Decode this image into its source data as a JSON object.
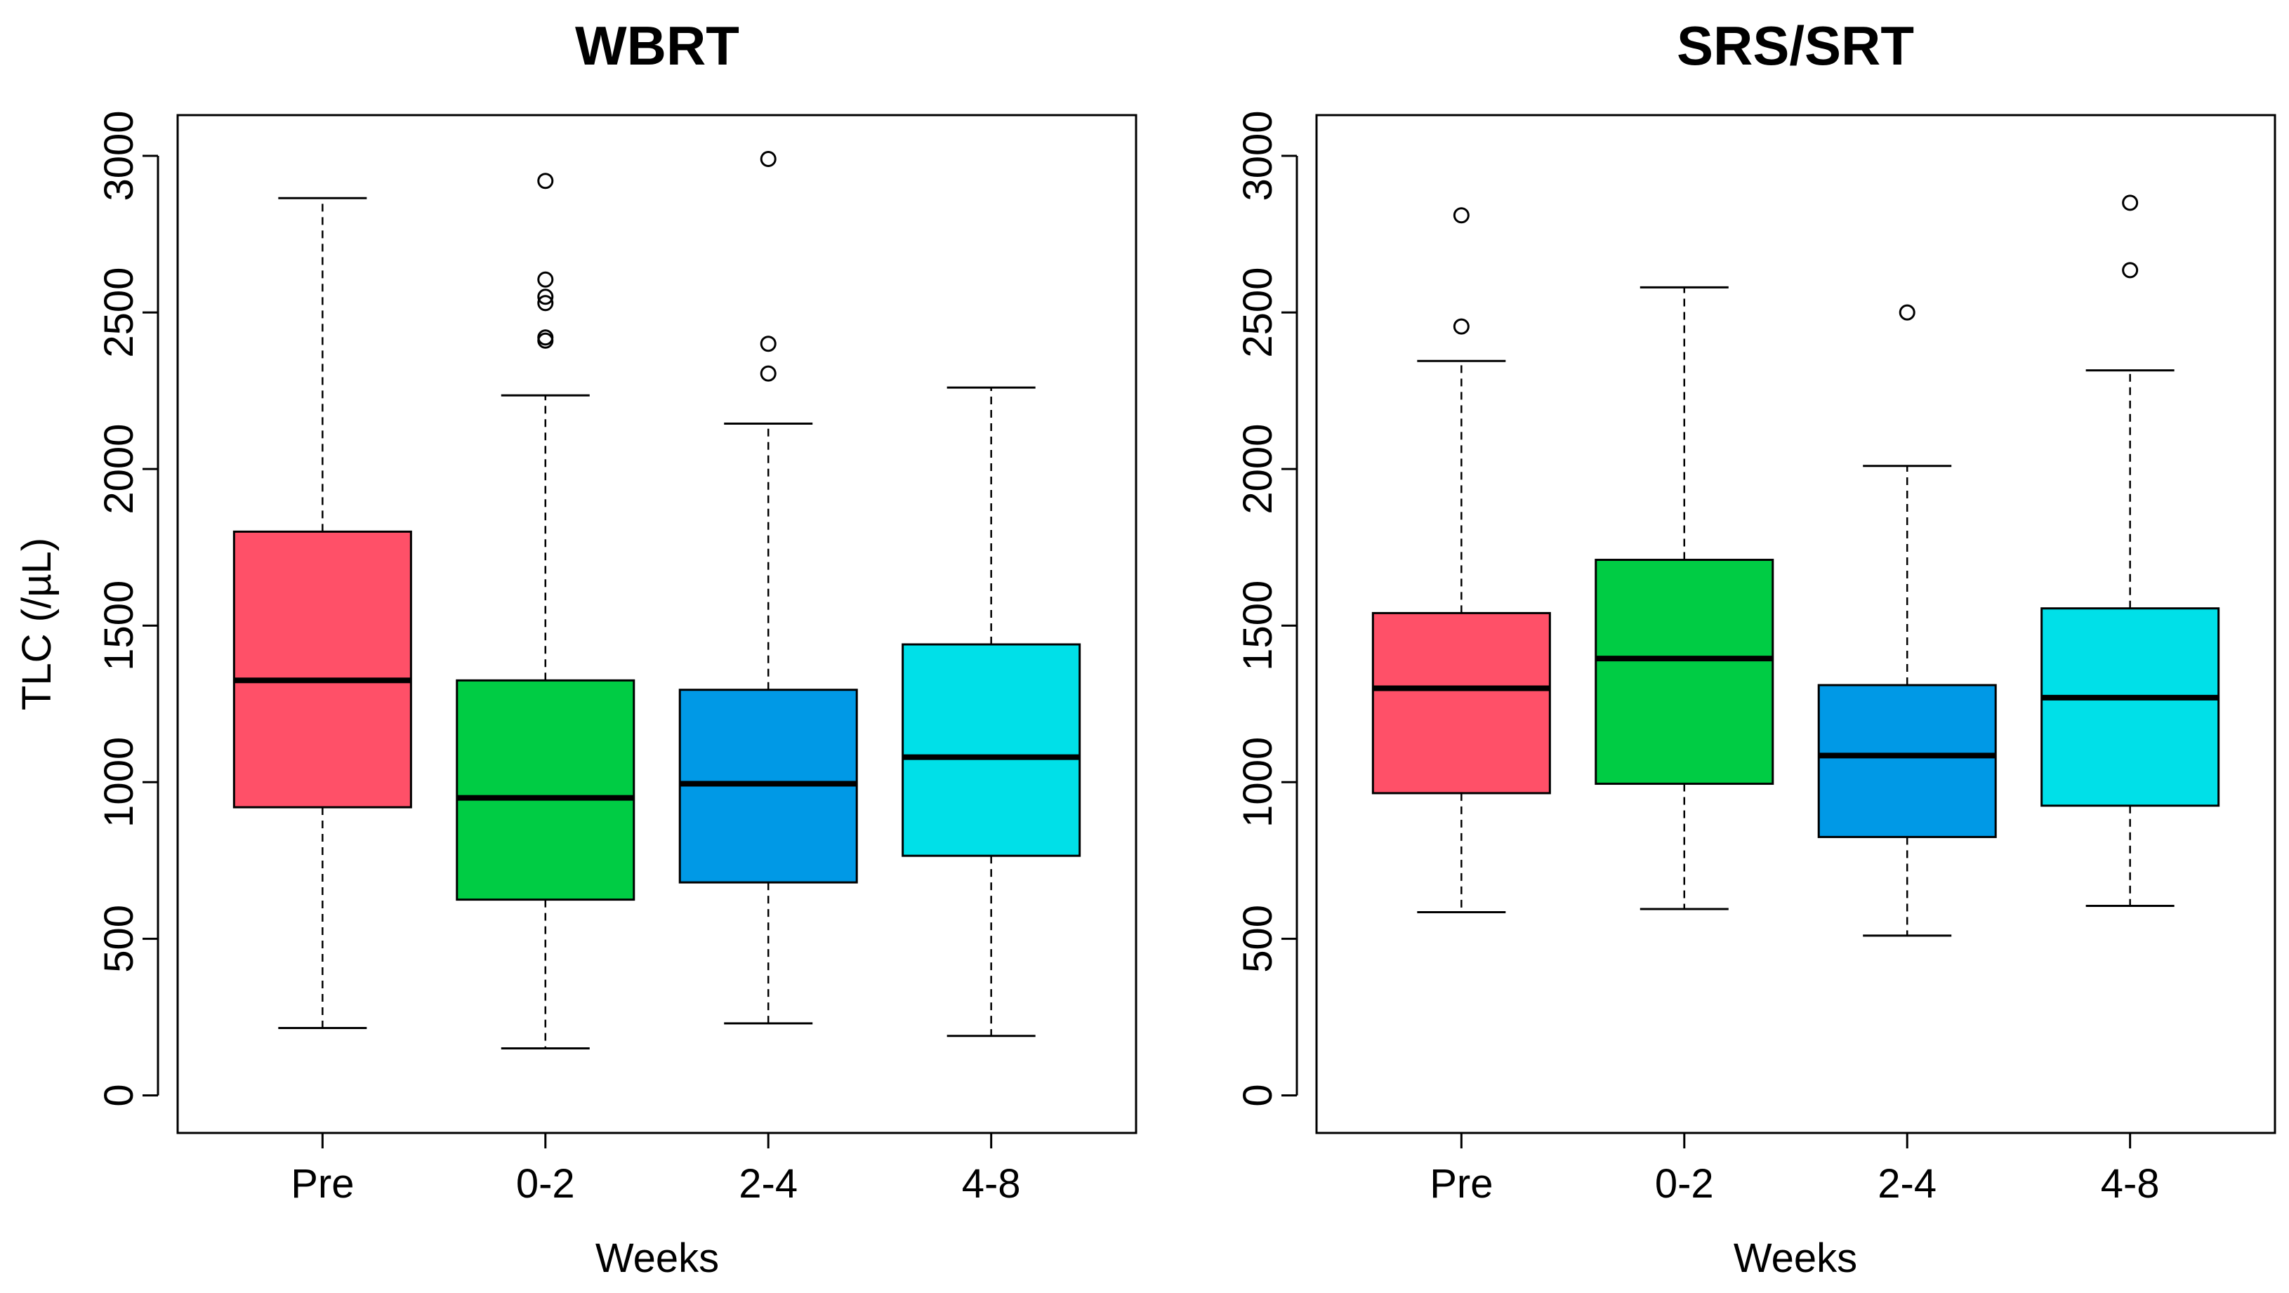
{
  "chart_data": [
    {
      "type": "box",
      "title": "WBRT",
      "xlabel": "Weeks",
      "ylabel": "TLC (/µL)",
      "ylim": [
        -120,
        3130
      ],
      "yticks": [
        0,
        500,
        1000,
        1500,
        2000,
        2500,
        3000
      ],
      "categories": [
        "Pre",
        "0-2",
        "2-4",
        "4-8"
      ],
      "colors": [
        "#ff5068",
        "#00cc44",
        "#0099e6",
        "#00e0e8"
      ],
      "boxes": [
        {
          "whisker_low": 215,
          "q1": 920,
          "median": 1325,
          "q3": 1800,
          "whisker_high": 2865,
          "outliers": []
        },
        {
          "whisker_low": 150,
          "q1": 625,
          "median": 950,
          "q3": 1325,
          "whisker_high": 2235,
          "outliers": [
            2920,
            2605,
            2550,
            2530,
            2420,
            2410
          ]
        },
        {
          "whisker_low": 230,
          "q1": 680,
          "median": 995,
          "q3": 1295,
          "whisker_high": 2145,
          "outliers": [
            2990,
            2400,
            2305
          ]
        },
        {
          "whisker_low": 190,
          "q1": 765,
          "median": 1080,
          "q3": 1440,
          "whisker_high": 2260,
          "outliers": []
        }
      ]
    },
    {
      "type": "box",
      "title": "SRS/SRT",
      "xlabel": "Weeks",
      "ylabel": "",
      "ylim": [
        -120,
        3130
      ],
      "yticks": [
        0,
        500,
        1000,
        1500,
        2000,
        2500,
        3000
      ],
      "categories": [
        "Pre",
        "0-2",
        "2-4",
        "4-8"
      ],
      "colors": [
        "#ff5068",
        "#00cc44",
        "#0099e6",
        "#00e0e8"
      ],
      "boxes": [
        {
          "whisker_low": 585,
          "q1": 965,
          "median": 1300,
          "q3": 1540,
          "whisker_high": 2345,
          "outliers": [
            2810,
            2455
          ]
        },
        {
          "whisker_low": 595,
          "q1": 995,
          "median": 1395,
          "q3": 1710,
          "whisker_high": 2580,
          "outliers": []
        },
        {
          "whisker_low": 510,
          "q1": 825,
          "median": 1085,
          "q3": 1310,
          "whisker_high": 2010,
          "outliers": [
            2500
          ]
        },
        {
          "whisker_low": 605,
          "q1": 925,
          "median": 1270,
          "q3": 1555,
          "whisker_high": 2315,
          "outliers": [
            2850,
            2635
          ]
        }
      ]
    }
  ]
}
